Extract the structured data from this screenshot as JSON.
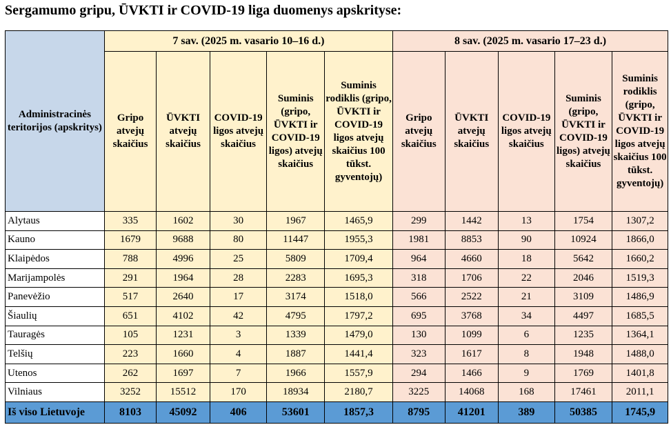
{
  "title": "Sergamumo gripu, ŪVKTI ir COVID-19 liga duomenys apskrityse:",
  "header": {
    "region_col": "Administracinės teritorijos (apskritys)",
    "week7": "7 sav. (2025 m. vasario 10–16 d.)",
    "week8": "8 sav. (2025 m. vasario 17–23 d.)",
    "columns": [
      "Gripo atvejų skaičius",
      "ŪVKTI atvejų skaičius",
      "COVID-19 ligos atvejų skaičius",
      "Suminis (gripo, ŪVKTI ir COVID-19 ligos) atvejų skaičius",
      "Suminis rodiklis (gripo, ŪVKTI ir COVID-19 ligos atvejų skaičius 100 tūkst. gyventojų)"
    ]
  },
  "rows": [
    {
      "region": "Alytaus",
      "w7": [
        "335",
        "1602",
        "30",
        "1967",
        "1465,9"
      ],
      "w8": [
        "299",
        "1442",
        "13",
        "1754",
        "1307,2"
      ]
    },
    {
      "region": "Kauno",
      "w7": [
        "1679",
        "9688",
        "80",
        "11447",
        "1955,3"
      ],
      "w8": [
        "1981",
        "8853",
        "90",
        "10924",
        "1866,0"
      ]
    },
    {
      "region": "Klaipėdos",
      "w7": [
        "788",
        "4996",
        "25",
        "5809",
        "1709,4"
      ],
      "w8": [
        "964",
        "4660",
        "18",
        "5642",
        "1660,2"
      ]
    },
    {
      "region": "Marijampolės",
      "w7": [
        "291",
        "1964",
        "28",
        "2283",
        "1695,3"
      ],
      "w8": [
        "318",
        "1706",
        "22",
        "2046",
        "1519,3"
      ]
    },
    {
      "region": "Panevėžio",
      "w7": [
        "517",
        "2640",
        "17",
        "3174",
        "1518,0"
      ],
      "w8": [
        "566",
        "2522",
        "21",
        "3109",
        "1486,9"
      ]
    },
    {
      "region": "Šiaulių",
      "w7": [
        "651",
        "4102",
        "42",
        "4795",
        "1797,2"
      ],
      "w8": [
        "695",
        "3768",
        "34",
        "4497",
        "1685,5"
      ]
    },
    {
      "region": "Tauragės",
      "w7": [
        "105",
        "1231",
        "3",
        "1339",
        "1479,0"
      ],
      "w8": [
        "130",
        "1099",
        "6",
        "1235",
        "1364,1"
      ]
    },
    {
      "region": "Telšių",
      "w7": [
        "223",
        "1660",
        "4",
        "1887",
        "1441,4"
      ],
      "w8": [
        "323",
        "1617",
        "8",
        "1948",
        "1488,0"
      ]
    },
    {
      "region": "Utenos",
      "w7": [
        "262",
        "1697",
        "7",
        "1966",
        "1557,9"
      ],
      "w8": [
        "294",
        "1466",
        "9",
        "1769",
        "1401,8"
      ]
    },
    {
      "region": "Vilniaus",
      "w7": [
        "3252",
        "15512",
        "170",
        "18934",
        "2180,7"
      ],
      "w8": [
        "3225",
        "14068",
        "168",
        "17461",
        "2011,1"
      ]
    }
  ],
  "total": {
    "region": "Iš viso Lietuvoje",
    "w7": [
      "8103",
      "45092",
      "406",
      "53601",
      "1857,3"
    ],
    "w8": [
      "8795",
      "41201",
      "389",
      "50385",
      "1745,9"
    ]
  }
}
